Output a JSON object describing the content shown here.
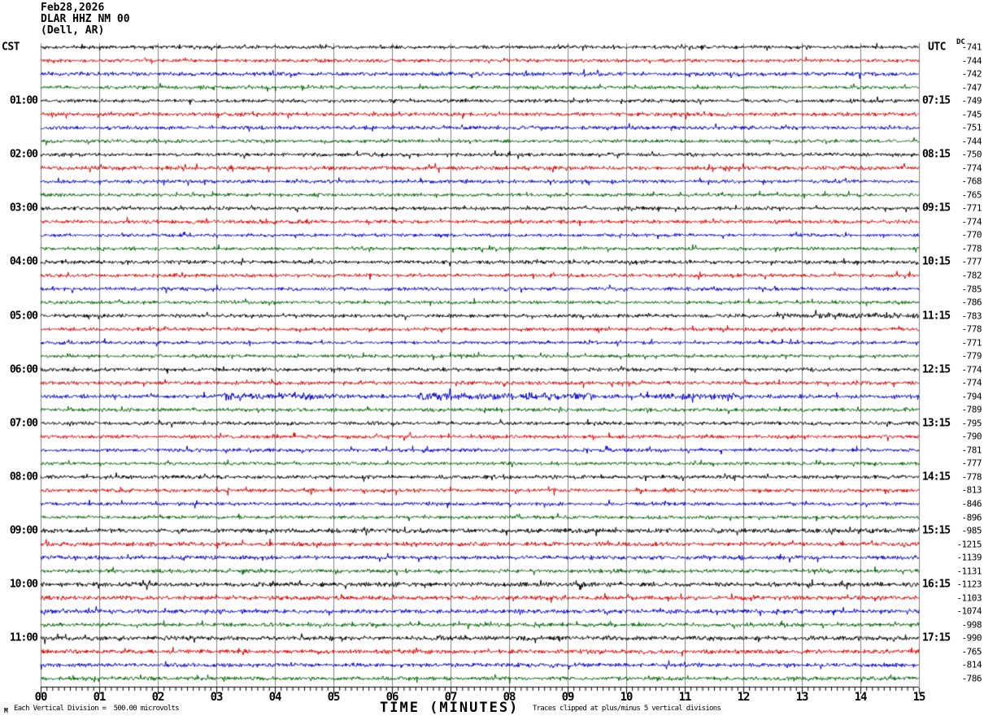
{
  "header": {
    "date": "Feb28,2026",
    "station": "DLAR HHZ NM 00",
    "location": "(Dell, AR)"
  },
  "axes": {
    "left_title": "CST",
    "right_title": "UTC",
    "dc_title": "DC",
    "x_title": "TIME (MINUTES)",
    "x_tick_labels": [
      "00",
      "01",
      "02",
      "03",
      "04",
      "05",
      "06",
      "07",
      "08",
      "09",
      "10",
      "11",
      "12",
      "13",
      "14",
      "15"
    ],
    "left_hour_labels": [
      "01:00",
      "02:00",
      "03:00",
      "04:00",
      "05:00",
      "06:00",
      "07:00",
      "08:00",
      "09:00",
      "10:00",
      "11:00"
    ],
    "right_hour_labels": [
      "07:15",
      "08:15",
      "09:15",
      "10:15",
      "11:15",
      "12:15",
      "13:15",
      "14:15",
      "15:15",
      "16:15",
      "17:15"
    ]
  },
  "footer": {
    "scale_note": "Each Vertical Division =  500.00 microvolts",
    "clip_note": "Traces clipped at plus/minus 5 vertical divisions",
    "corner_mark": "M"
  },
  "colors": {
    "trace_cycle": [
      "#000000",
      "#dd0000",
      "#0000cc",
      "#006400"
    ],
    "grid": "#808080",
    "axis": "#000000",
    "text": "#000000"
  },
  "chart_data": {
    "type": "line",
    "kind": "seismogram-helicorder",
    "title": "DLAR HHZ NM 00 (Dell, AR) Feb28,2026",
    "xlabel": "TIME (MINUTES)",
    "x_range_minutes": [
      0,
      15
    ],
    "minutes_per_line": 15,
    "traces_per_hour": 4,
    "trace_color_cycle": [
      "black",
      "red",
      "blue",
      "green"
    ],
    "vertical_division_microvolts": 500.0,
    "clip_divisions": 5,
    "traces": [
      {
        "dc": -741,
        "amp": 1.6
      },
      {
        "dc": -744,
        "amp": 1.6
      },
      {
        "dc": -742,
        "amp": 1.7
      },
      {
        "dc": -747,
        "amp": 1.5
      },
      {
        "dc": -749,
        "amp": 1.6
      },
      {
        "dc": -745,
        "amp": 1.7
      },
      {
        "dc": -751,
        "amp": 1.7
      },
      {
        "dc": -744,
        "amp": 1.5
      },
      {
        "dc": -750,
        "amp": 1.6
      },
      {
        "dc": -774,
        "amp": 1.8
      },
      {
        "dc": -768,
        "amp": 1.6
      },
      {
        "dc": -765,
        "amp": 1.5
      },
      {
        "dc": -771,
        "amp": 1.6
      },
      {
        "dc": -774,
        "amp": 1.7
      },
      {
        "dc": -770,
        "amp": 1.5
      },
      {
        "dc": -778,
        "amp": 1.5
      },
      {
        "dc": -777,
        "amp": 1.7
      },
      {
        "dc": -782,
        "amp": 1.6,
        "spikes": [
          [
            0.375,
            5
          ]
        ]
      },
      {
        "dc": -785,
        "amp": 1.6
      },
      {
        "dc": -786,
        "amp": 1.5
      },
      {
        "dc": -783,
        "amp": 1.6,
        "bursts": [
          [
            0.84,
            1.0,
            2.6
          ]
        ]
      },
      {
        "dc": -778,
        "amp": 1.6
      },
      {
        "dc": -771,
        "amp": 1.5
      },
      {
        "dc": -779,
        "amp": 1.5
      },
      {
        "dc": -774,
        "amp": 1.7
      },
      {
        "dc": -774,
        "amp": 1.7
      },
      {
        "dc": -794,
        "amp": 1.8,
        "bursts": [
          [
            0.2,
            0.34,
            3.2
          ],
          [
            0.43,
            0.63,
            3.4
          ],
          [
            0.7,
            0.8,
            2.8
          ]
        ]
      },
      {
        "dc": -789,
        "amp": 1.6
      },
      {
        "dc": -795,
        "amp": 1.6
      },
      {
        "dc": -790,
        "amp": 1.6
      },
      {
        "dc": -781,
        "amp": 1.6
      },
      {
        "dc": -777,
        "amp": 1.5
      },
      {
        "dc": -778,
        "amp": 1.7
      },
      {
        "dc": -813,
        "amp": 1.6,
        "spikes": [
          [
            0.213,
            6
          ],
          [
            0.308,
            5
          ],
          [
            0.585,
            6
          ]
        ]
      },
      {
        "dc": -846,
        "amp": 1.6
      },
      {
        "dc": -896,
        "amp": 1.5
      },
      {
        "dc": -985,
        "amp": 2.0
      },
      {
        "dc": -1215,
        "amp": 1.9
      },
      {
        "dc": -1139,
        "amp": 1.8
      },
      {
        "dc": -1131,
        "amp": 1.7
      },
      {
        "dc": -1123,
        "amp": 2.0
      },
      {
        "dc": -1103,
        "amp": 1.9
      },
      {
        "dc": -1074,
        "amp": 1.9
      },
      {
        "dc": -998,
        "amp": 1.7
      },
      {
        "dc": -990,
        "amp": 2.0
      },
      {
        "dc": -765,
        "amp": 1.9
      },
      {
        "dc": -814,
        "amp": 1.8
      },
      {
        "dc": -786,
        "amp": 1.7
      }
    ]
  }
}
